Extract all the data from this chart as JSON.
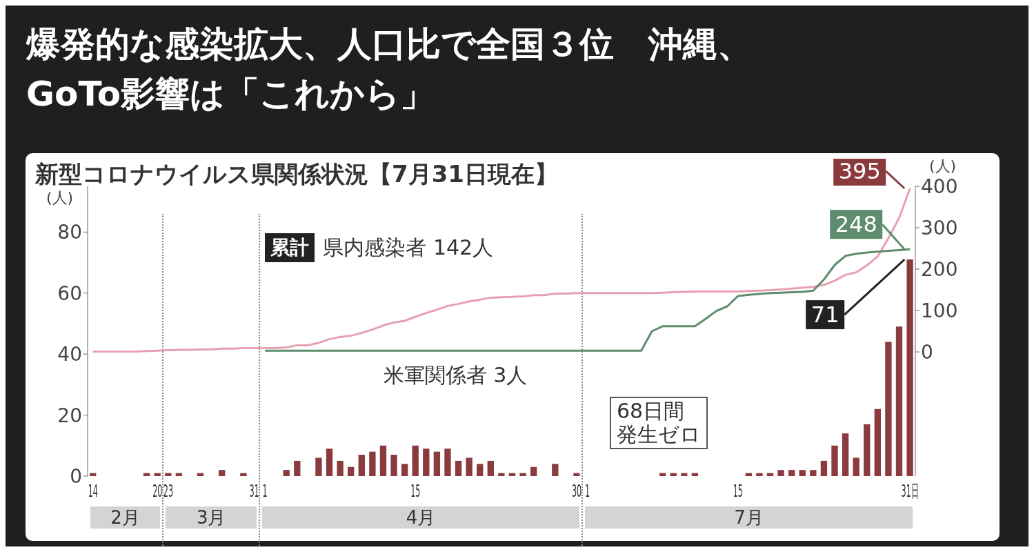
{
  "chart_data": {
    "type": "bar",
    "title": "爆発的な感染拡大、人口比で全国３位　沖縄、GoTo影響は「これから」",
    "subtitle": "新型コロナウイルス県関係状況【7月31日現在】",
    "ylabel": "(人)",
    "y2label": "(人)",
    "legend_title": "累計",
    "annotations": [
      "68日間発生ゼロ",
      "2月",
      "3月",
      "4月",
      "7月"
    ],
    "categories": [
      "14",
      null,
      null,
      null,
      null,
      null,
      "20",
      "23",
      null,
      null,
      null,
      null,
      null,
      null,
      null,
      "31",
      "1",
      null,
      null,
      null,
      null,
      null,
      null,
      null,
      null,
      null,
      null,
      null,
      null,
      null,
      "15",
      null,
      null,
      null,
      null,
      null,
      null,
      null,
      null,
      null,
      null,
      null,
      null,
      null,
      null,
      "30",
      "1",
      null,
      null,
      null,
      null,
      null,
      null,
      null,
      null,
      null,
      null,
      null,
      null,
      null,
      "15",
      null,
      null,
      null,
      null,
      null,
      null,
      null,
      null,
      null,
      null,
      null,
      null,
      null,
      null,
      null,
      "31日"
    ],
    "series": [
      {
        "color": "#8b3a3e",
        "values": [
          1,
          0,
          0,
          0,
          0,
          1,
          1,
          1,
          1,
          0,
          1,
          0,
          2,
          0,
          1,
          0,
          0,
          0,
          2,
          5,
          0,
          6,
          9,
          5,
          3,
          7,
          8,
          10,
          7,
          4,
          10,
          9,
          8,
          9,
          5,
          6,
          4,
          5,
          1,
          1,
          1,
          3,
          0,
          4,
          0,
          1,
          0,
          0,
          0,
          0,
          0,
          0,
          0,
          1,
          1,
          1,
          1,
          0,
          0,
          0,
          0,
          1,
          1,
          1,
          2,
          2,
          2,
          2,
          5,
          10,
          14,
          6,
          17,
          22,
          44,
          49,
          71
        ],
        "value_labels": [
          null,
          null,
          null,
          null,
          null,
          null,
          null,
          null,
          null,
          null,
          null,
          null,
          null,
          null,
          null,
          null,
          null,
          null,
          null,
          null,
          null,
          null,
          null,
          null,
          null,
          null,
          null,
          null,
          null,
          null,
          null,
          null,
          null,
          null,
          null,
          null,
          null,
          null,
          null,
          null,
          null,
          null,
          null,
          null,
          null,
          null,
          null,
          null,
          null,
          null,
          null,
          null,
          null,
          null,
          null,
          null,
          null,
          null,
          null,
          null,
          null,
          null,
          null,
          null,
          null,
          null,
          null,
          null,
          null,
          null,
          null,
          null,
          null,
          null,
          null,
          null,
          "71"
        ]
      },
      {
        "type": "line",
        "axis": "y2",
        "name": "県内感染者 142人",
        "color": "#e8a0b0",
        "values": [
          1,
          1,
          1,
          1,
          1,
          2,
          3,
          4,
          5,
          5,
          6,
          6,
          8,
          8,
          9,
          9,
          9,
          9,
          11,
          16,
          16,
          22,
          31,
          36,
          39,
          46,
          54,
          64,
          71,
          75,
          85,
          94,
          102,
          111,
          116,
          122,
          126,
          131,
          132,
          133,
          134,
          137,
          137,
          141,
          141,
          142,
          142,
          142,
          142,
          142,
          142,
          142,
          142,
          143,
          144,
          145,
          146,
          146,
          146,
          146,
          146,
          147,
          148,
          149,
          151,
          153,
          155,
          157,
          162,
          172,
          186,
          192,
          209,
          231,
          275,
          324,
          395
        ],
        "value_labels": [
          null,
          null,
          null,
          null,
          null,
          null,
          null,
          null,
          null,
          null,
          null,
          null,
          null,
          null,
          null,
          null,
          null,
          null,
          null,
          null,
          null,
          null,
          null,
          null,
          null,
          null,
          null,
          null,
          null,
          null,
          null,
          null,
          null,
          null,
          null,
          null,
          null,
          null,
          null,
          null,
          null,
          null,
          null,
          null,
          null,
          null,
          null,
          null,
          null,
          null,
          null,
          null,
          null,
          null,
          null,
          null,
          null,
          null,
          null,
          null,
          null,
          null,
          null,
          null,
          null,
          null,
          null,
          null,
          null,
          null,
          null,
          null,
          null,
          null,
          null,
          null,
          "395"
        ]
      },
      {
        "type": "line",
        "axis": "y2",
        "name": "米軍関係者 3人",
        "color": "#5e8c6c",
        "values": [
          null,
          null,
          null,
          null,
          null,
          null,
          null,
          null,
          null,
          null,
          null,
          null,
          null,
          null,
          null,
          null,
          3,
          3,
          3,
          3,
          3,
          3,
          3,
          3,
          3,
          3,
          3,
          3,
          3,
          3,
          3,
          3,
          3,
          3,
          3,
          3,
          3,
          3,
          3,
          3,
          3,
          3,
          3,
          3,
          3,
          3,
          3,
          3,
          3,
          3,
          3,
          3,
          50,
          62,
          62,
          62,
          62,
          80,
          99,
          110,
          135,
          138,
          140,
          142,
          143,
          144,
          145,
          148,
          175,
          210,
          232,
          237,
          240,
          242,
          244,
          246,
          248
        ],
        "value_labels": [
          null,
          null,
          null,
          null,
          null,
          null,
          null,
          null,
          null,
          null,
          null,
          null,
          null,
          null,
          null,
          null,
          null,
          null,
          null,
          null,
          null,
          null,
          null,
          null,
          null,
          null,
          null,
          null,
          null,
          null,
          null,
          null,
          null,
          null,
          null,
          null,
          null,
          null,
          null,
          null,
          null,
          null,
          null,
          null,
          null,
          null,
          null,
          null,
          null,
          null,
          null,
          null,
          null,
          null,
          null,
          null,
          null,
          null,
          null,
          null,
          null,
          null,
          null,
          null,
          null,
          null,
          null,
          null,
          null,
          null,
          null,
          null,
          null,
          null,
          null,
          null,
          "248"
        ]
      }
    ],
    "ylim": [
      0,
      95
    ],
    "yticks": [
      0,
      20,
      40,
      60,
      80
    ],
    "y2lim": [
      -300,
      400
    ],
    "y2ticks": [
      0,
      100,
      200,
      300,
      400
    ]
  }
}
